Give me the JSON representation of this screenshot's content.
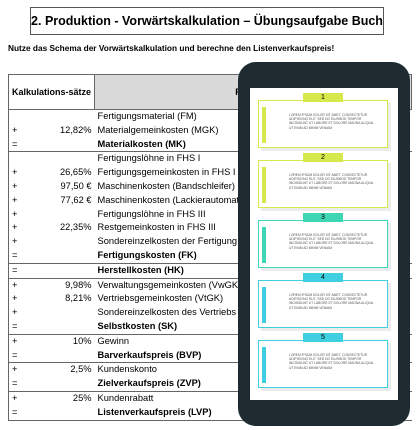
{
  "header": {
    "title": "2. Produktion - Vorwärtskalkulation – Übungsaufgabe Buch"
  },
  "instruction": "Nutze das Schema der Vorwärtskalkulation und berechne den Listenverkaufspreis!",
  "table": {
    "headers": [
      "Kalkulations-sätze",
      "Position"
    ],
    "groups": [
      [
        {
          "text": "Fertigungsmaterial (FM)"
        },
        {
          "op": "+",
          "rate": "12,82%",
          "text": "Materialgemeinkosten (MGK)"
        },
        {
          "op": "=",
          "text": "Materialkosten (MK)",
          "bold": true
        }
      ],
      [
        {
          "text": "Fertigungslöhne in FHS I"
        },
        {
          "op": "+",
          "rate": "26,65%",
          "text": "Fertigungsgemeinkosten in FHS I"
        },
        {
          "op": "+",
          "rate": "97,50 €",
          "text": "Maschinenkosten (Bandschleifer) in FH"
        },
        {
          "op": "+",
          "rate": "77,62 €",
          "text": "Maschinenkosten (Lackierautomat) in"
        },
        {
          "op": "+",
          "text": "Fertigungslöhne in FHS III"
        },
        {
          "op": "+",
          "rate": "22,35%",
          "text": "Restgemeinkosten in FHS III"
        },
        {
          "op": "+",
          "text": "Sondereinzelkosten der Fertigung (SEK"
        },
        {
          "op": "=",
          "text": "Fertigungskosten (FK)",
          "bold": true
        }
      ],
      [
        {
          "op": "=",
          "text": "Herstellkosten (HK)",
          "bold": true
        }
      ],
      [
        {
          "op": "+",
          "rate": "9,98%",
          "text": "Verwaltungsgemeinkosten (VwGK)"
        },
        {
          "op": "+",
          "rate": "8,21%",
          "text": "Vertriebsgemeinkosten (VtGK)"
        },
        {
          "op": "+",
          "text": "Sondereinzelkosten des Vertriebs (SEK"
        },
        {
          "op": "=",
          "text": "Selbstkosten (SK)",
          "bold": true
        }
      ],
      [
        {
          "op": "+",
          "rate": "10%",
          "text": "Gewinn"
        },
        {
          "op": "=",
          "text": "Barverkaufspreis (BVP)",
          "bold": true
        }
      ],
      [
        {
          "op": "+",
          "rate": "2,5%",
          "text": "Kundenskonto"
        },
        {
          "op": "=",
          "text": "Zielverkaufspreis (ZVP)",
          "bold": true
        }
      ],
      [
        {
          "op": "+",
          "rate": "25%",
          "text": "Kundenrabatt"
        },
        {
          "op": "=",
          "text": "Listenverkaufspreis (LVP)",
          "bold": true
        }
      ]
    ]
  },
  "phone": {
    "cards": [
      {
        "number": "1",
        "color": "#d6e84c",
        "text": "LOREM IPSUM DOLOR SIT AMET, CONSECTETUR ADIPISCING ELIT, SED DO EIUSMOD TEMPOR INCIDIDUNT UT LABORE ET DOLORE MAGNA ALIQUA. UT ENIM AD MINIM VENIAM"
      },
      {
        "number": "2",
        "color": "#d6e84c",
        "text": "LOREM IPSUM DOLOR SIT AMET, CONSECTETUR ADIPISCING ELIT, SED DO EIUSMOD TEMPOR INCIDIDUNT UT LABORE ET DOLORE MAGNA ALIQUA. UT ENIM AD MINIM VENIAM"
      },
      {
        "number": "3",
        "color": "#3fd6b4",
        "text": "LOREM IPSUM DOLOR SIT AMET, CONSECTETUR ADIPISCING ELIT, SED DO EIUSMOD TEMPOR INCIDIDUNT UT LABORE ET DOLORE MAGNA ALIQUA. UT ENIM AD MINIM VENIAM"
      },
      {
        "number": "4",
        "color": "#3fcfe0",
        "text": "LOREM IPSUM DOLOR SIT AMET, CONSECTETUR ADIPISCING ELIT, SED DO EIUSMOD TEMPOR INCIDIDUNT UT LABORE ET DOLORE MAGNA ALIQUA. UT ENIM AD MINIM VENIAM"
      },
      {
        "number": "5",
        "color": "#3fcfe0",
        "text": "LOREM IPSUM DOLOR SIT AMET, CONSECTETUR ADIPISCING ELIT, SED DO EIUSMOD TEMPOR INCIDIDUNT UT LABORE ET DOLORE MAGNA ALIQUA. UT ENIM AD MINIM VENIAM"
      }
    ]
  }
}
